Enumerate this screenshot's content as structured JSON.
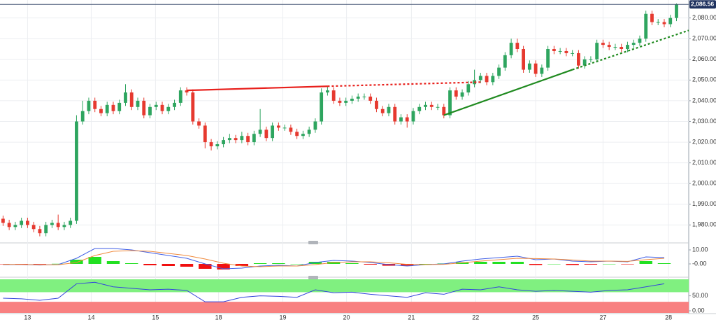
{
  "chart_data": [
    {
      "type": "candlestick",
      "xlim": [
        -0.5,
        112
      ],
      "xticks": [
        {
          "value": 4,
          "label": "13"
        },
        {
          "value": 14.4,
          "label": "14"
        },
        {
          "value": 24.9,
          "label": "15"
        },
        {
          "value": 35.2,
          "label": "18"
        },
        {
          "value": 45.7,
          "label": "19"
        },
        {
          "value": 56.1,
          "label": "20"
        },
        {
          "value": 66.7,
          "label": "21"
        },
        {
          "value": 77.2,
          "label": "22"
        },
        {
          "value": 87,
          "label": "25"
        },
        {
          "value": 98,
          "label": "27"
        },
        {
          "value": 108.7,
          "label": "28"
        }
      ],
      "ylim": [
        1972,
        2088
      ],
      "yticks": [
        {
          "value": 1980,
          "label": "1,980.00"
        },
        {
          "value": 1990,
          "label": "1,990.00"
        },
        {
          "value": 2000,
          "label": "2,000.00"
        },
        {
          "value": 2010,
          "label": "2,010.00"
        },
        {
          "value": 2020,
          "label": "2,020.00"
        },
        {
          "value": 2030,
          "label": "2,030.00"
        },
        {
          "value": 2040,
          "label": "2,040.00"
        },
        {
          "value": 2050,
          "label": "2,050.00"
        },
        {
          "value": 2060,
          "label": "2,060.00"
        },
        {
          "value": 2070,
          "label": "2,070.00"
        },
        {
          "value": 2080,
          "label": "2,080.00"
        }
      ],
      "grid": true,
      "up_color": "#2ea55f",
      "down_color": "#e6392f",
      "last_price": {
        "value": 2086.56,
        "label": "2,086.56"
      },
      "open": [
        1983,
        1981,
        1979,
        1980,
        1982,
        1980,
        1978,
        1976,
        1980,
        1981,
        1979,
        1980,
        1982,
        2030,
        2035,
        2040,
        2036,
        2034,
        2038,
        2035,
        2039,
        2044,
        2037,
        2040,
        2033,
        2037,
        2038,
        2035,
        2037,
        2039,
        2045,
        2044,
        2030,
        2028,
        2020,
        2018,
        2019,
        2021,
        2022,
        2021,
        2023,
        2020,
        2024,
        2026,
        2022,
        2028,
        2027,
        2027,
        2025,
        2023,
        2024,
        2026,
        2030,
        2044,
        2045,
        2040,
        2039,
        2040,
        2041,
        2042,
        2042,
        2040,
        2036,
        2034,
        2037,
        2030,
        2032,
        2030,
        2035,
        2037,
        2038,
        2037,
        2037,
        2033,
        2045,
        2042,
        2044,
        2048,
        2050,
        2052,
        2049,
        2052,
        2056,
        2062,
        2068,
        2065,
        2055,
        2058,
        2053,
        2056,
        2065,
        2064,
        2064,
        2063,
        2063,
        2057,
        2060,
        2060,
        2068,
        2067,
        2066,
        2066,
        2065,
        2067,
        2068,
        2070,
        2082,
        2078,
        2078,
        2077,
        2080
      ],
      "high": [
        1984.5,
        1982.5,
        1981.5,
        1983.5,
        1983.5,
        1981.5,
        1979.5,
        1981.5,
        1982.5,
        1985,
        1981.5,
        1983.5,
        2033,
        2040,
        2041.5,
        2041.5,
        2037.5,
        2039.5,
        2039.5,
        2040.5,
        2048,
        2045.5,
        2041.5,
        2041.5,
        2038.5,
        2039.5,
        2039.5,
        2038.5,
        2040.5,
        2046.5,
        2046.5,
        2045.5,
        2031.5,
        2029.5,
        2021.5,
        2020.5,
        2022.5,
        2024,
        2023.5,
        2025,
        2024.5,
        2025.5,
        2036,
        2027.5,
        2029.5,
        2029.5,
        2028.5,
        2028.5,
        2026.5,
        2025.5,
        2027.5,
        2031.5,
        2046,
        2047,
        2046.5,
        2041.5,
        2041.5,
        2042.5,
        2043.5,
        2043.5,
        2043.5,
        2041.5,
        2037.5,
        2038.5,
        2038.5,
        2033.5,
        2033.5,
        2036.5,
        2038.5,
        2039.5,
        2039.5,
        2038.5,
        2038.5,
        2046.5,
        2046.5,
        2045.5,
        2049.5,
        2055,
        2053.5,
        2053.5,
        2053.5,
        2057.5,
        2063.5,
        2070,
        2070,
        2066.5,
        2059.5,
        2059.5,
        2057.5,
        2066.5,
        2066.5,
        2065.5,
        2065.5,
        2064.5,
        2064.5,
        2061.5,
        2061.5,
        2069.5,
        2069.5,
        2068.5,
        2067.5,
        2067.5,
        2068.5,
        2069.5,
        2071.5,
        2083.5,
        2083.5,
        2079.5,
        2079.5,
        2081.5,
        2087
      ],
      "low": [
        1979.5,
        1977.5,
        1977.5,
        1978.5,
        1978.5,
        1976.5,
        1974.5,
        1974.5,
        1978.5,
        1977.5,
        1977.5,
        1978.5,
        1980.5,
        2028.5,
        2033.5,
        2034.5,
        2032.5,
        2032.5,
        2033.5,
        2033.5,
        2037.5,
        2035.5,
        2035.5,
        2031.5,
        2031.5,
        2035.5,
        2033.5,
        2033.5,
        2035.5,
        2037.5,
        2042.5,
        2028.5,
        2026.5,
        2017,
        2016,
        2016.5,
        2017.5,
        2019.5,
        2019.5,
        2019.5,
        2018.5,
        2018.5,
        2022.5,
        2020.5,
        2020.5,
        2025.5,
        2025.5,
        2023.5,
        2021.5,
        2021.5,
        2022.5,
        2024.5,
        2028.5,
        2042.5,
        2038.5,
        2037.5,
        2037.5,
        2038.5,
        2039.5,
        2040.5,
        2038.5,
        2034.5,
        2032.5,
        2032.5,
        2028.5,
        2028.5,
        2027,
        2028.5,
        2033.5,
        2035.5,
        2035.5,
        2035.5,
        2031.5,
        2031.5,
        2040.5,
        2040.5,
        2042.5,
        2046.5,
        2048.5,
        2047.5,
        2047.5,
        2050.5,
        2054.5,
        2060.5,
        2063.5,
        2053.5,
        2053.5,
        2051.5,
        2051.5,
        2054.5,
        2062.5,
        2062.5,
        2061.5,
        2061.5,
        2055.5,
        2055.5,
        2058.5,
        2058.5,
        2065.5,
        2064.5,
        2064.5,
        2063.5,
        2063.5,
        2065.5,
        2066.5,
        2068.5,
        2076.5,
        2076.5,
        2075.5,
        2075.5,
        2078.5
      ],
      "close": [
        1981,
        1979,
        1980,
        1982,
        1980,
        1978,
        1976,
        1980,
        1981,
        1979,
        1980,
        1982,
        2030,
        2035,
        2040,
        2036,
        2034,
        2038,
        2035,
        2039,
        2044,
        2037,
        2040,
        2033,
        2037,
        2038,
        2035,
        2037,
        2039,
        2045,
        2044,
        2030,
        2028,
        2020,
        2018,
        2019,
        2021,
        2022,
        2021,
        2023,
        2020,
        2024,
        2026,
        2022,
        2028,
        2027,
        2027,
        2025,
        2023,
        2024,
        2026,
        2030,
        2044,
        2045,
        2040,
        2039,
        2040,
        2041,
        2042,
        2042,
        2040,
        2036,
        2034,
        2037,
        2030,
        2032,
        2030,
        2035,
        2037,
        2038,
        2037,
        2037,
        2033,
        2045,
        2042,
        2044,
        2048,
        2050,
        2052,
        2049,
        2052,
        2056,
        2062,
        2068,
        2065,
        2055,
        2058,
        2053,
        2056,
        2065,
        2064,
        2064,
        2063,
        2063,
        2057,
        2060,
        2060,
        2068,
        2067,
        2066,
        2066,
        2065,
        2067,
        2068,
        2070,
        2082,
        2078,
        2078,
        2077,
        2080,
        2086.56
      ],
      "trendlines": [
        {
          "color": "#e8201c",
          "x": [
            30,
            53
          ],
          "y": [
            2045,
            2047
          ],
          "extension_x": [
            53,
            78
          ],
          "extension_y": [
            2047,
            2049
          ]
        },
        {
          "color": "#1f8a1f",
          "x": [
            72,
            93
          ],
          "y": [
            2033,
            2055
          ],
          "extension_x": [
            93,
            112
          ],
          "extension_y": [
            2055,
            2074
          ]
        }
      ]
    },
    {
      "type": "macd",
      "xlim": [
        -0.5,
        112
      ],
      "ylim": [
        -6.5,
        13.5
      ],
      "yticks": [
        {
          "value": 10,
          "label": "10.00"
        },
        {
          "value": 0,
          "label": "-0.00"
        }
      ],
      "x": [
        0,
        3,
        6,
        9,
        12,
        15,
        18,
        21,
        24,
        27,
        30,
        33,
        36,
        39,
        42,
        45,
        48,
        51,
        54,
        57,
        60,
        63,
        66,
        69,
        72,
        75,
        78,
        81,
        84,
        87,
        90,
        93,
        96,
        99,
        102,
        105,
        108
      ],
      "series": [
        {
          "color": "#3f5ee6",
          "values": [
            -0.5,
            -0.5,
            -0.8,
            -0.5,
            4,
            11,
            11,
            10,
            8,
            6,
            4,
            0,
            -3.5,
            -3,
            -1.5,
            -1,
            -1.5,
            1,
            2.5,
            2,
            1,
            -0.5,
            -1.5,
            -0.5,
            0,
            2,
            3.5,
            4.5,
            5.5,
            3,
            3.5,
            2,
            1.5,
            2,
            1.5,
            5,
            4.5
          ]
        },
        {
          "color": "#f08a3c",
          "values": [
            -0.3,
            -0.4,
            -0.6,
            -0.6,
            1,
            6,
            9,
            9.5,
            9,
            7.5,
            6,
            3.5,
            0.5,
            -1.5,
            -2,
            -1.5,
            -1.5,
            -0.5,
            1,
            1.5,
            1.5,
            0.8,
            -0.3,
            -0.5,
            -0.3,
            0.8,
            2,
            3,
            4,
            3.8,
            3.5,
            2.8,
            2,
            2,
            1.8,
            3,
            4
          ]
        }
      ],
      "histogram": [
        -0.2,
        -0.1,
        -0.2,
        0.1,
        3,
        5,
        2,
        0.5,
        -1,
        -1.5,
        -2,
        -3.5,
        -4,
        -1.5,
        0.5,
        0.5,
        0,
        1.5,
        1.5,
        0.5,
        -0.5,
        -1.3,
        -1.2,
        0,
        0.3,
        1.2,
        1.5,
        1.5,
        1.5,
        -0.8,
        0,
        -0.8,
        -0.5,
        0,
        -0.3,
        2,
        0.5
      ],
      "up_color": "#22e022",
      "down_color": "#f01010"
    },
    {
      "type": "oscillator",
      "xlim": [
        -0.5,
        112
      ],
      "ylim": [
        -7,
        105
      ],
      "yticks": [
        {
          "value": 50,
          "label": "50.00"
        },
        {
          "value": 0,
          "label": "0.00"
        }
      ],
      "zones": [
        {
          "from": 62,
          "to": 105,
          "color": "#80f080"
        },
        {
          "from": -7,
          "to": 30,
          "color": "#f88080"
        }
      ],
      "x": [
        0,
        3,
        6,
        9,
        12,
        15,
        18,
        21,
        24,
        27,
        30,
        33,
        36,
        39,
        42,
        45,
        48,
        51,
        54,
        57,
        60,
        63,
        66,
        69,
        72,
        75,
        78,
        81,
        84,
        87,
        90,
        93,
        96,
        99,
        102,
        105,
        108
      ],
      "color": "#3344dd",
      "values": [
        42,
        40,
        35,
        42,
        90,
        95,
        80,
        75,
        70,
        72,
        68,
        30,
        30,
        45,
        50,
        48,
        45,
        70,
        60,
        62,
        55,
        50,
        45,
        60,
        55,
        72,
        70,
        80,
        70,
        65,
        68,
        65,
        62,
        68,
        70,
        80,
        90
      ]
    }
  ]
}
